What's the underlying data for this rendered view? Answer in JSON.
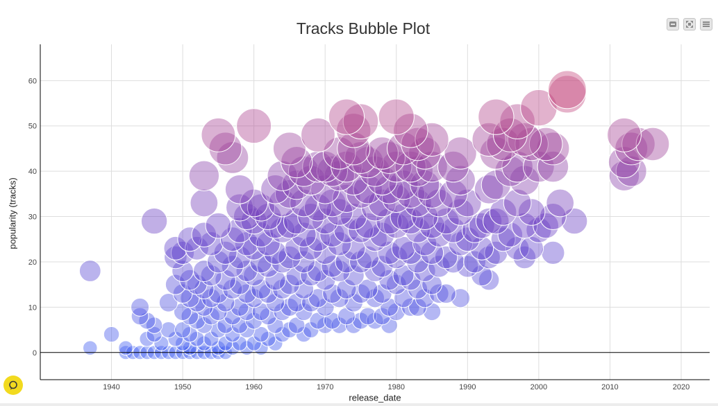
{
  "page": {
    "title": "Tracks Bubble Plot",
    "toolbar": [
      {
        "name": "minimize-button",
        "icon": "minus-icon"
      },
      {
        "name": "expand-button",
        "icon": "expand-icon"
      },
      {
        "name": "menu-button",
        "icon": "hamburger-icon"
      }
    ],
    "help_icon": "help-chat-icon"
  },
  "chart_data": {
    "type": "scatter",
    "title": "Tracks Bubble Plot",
    "xlabel": "release_date",
    "ylabel": "popularity (tracks)",
    "xlim": [
      1930,
      2024
    ],
    "ylim": [
      -6,
      68
    ],
    "xticks": [
      1940,
      1950,
      1960,
      1970,
      1980,
      1990,
      2000,
      2010,
      2020
    ],
    "yticks": [
      0,
      10,
      20,
      30,
      40,
      50,
      60
    ],
    "grid": true,
    "legend": "none",
    "color_scale": {
      "low": "#3d5cf2",
      "mid": "#6e3fc2",
      "high": "#cc4a7a",
      "encodes": "popularity"
    },
    "size_encodes": "popularity",
    "points": [
      [
        1937,
        1
      ],
      [
        1937,
        18
      ],
      [
        1940,
        4
      ],
      [
        1942,
        0
      ],
      [
        1942,
        1
      ],
      [
        1943,
        0
      ],
      [
        1944,
        0
      ],
      [
        1944,
        10
      ],
      [
        1944,
        8
      ],
      [
        1945,
        0
      ],
      [
        1945,
        3
      ],
      [
        1945,
        7
      ],
      [
        1946,
        0
      ],
      [
        1946,
        6
      ],
      [
        1946,
        29
      ],
      [
        1946,
        4
      ],
      [
        1947,
        0
      ],
      [
        1947,
        2
      ],
      [
        1948,
        0
      ],
      [
        1948,
        11
      ],
      [
        1948,
        5
      ],
      [
        1949,
        0
      ],
      [
        1949,
        3
      ],
      [
        1949,
        15
      ],
      [
        1949,
        21
      ],
      [
        1949,
        23
      ],
      [
        1950,
        0
      ],
      [
        1950,
        2
      ],
      [
        1950,
        5
      ],
      [
        1950,
        9
      ],
      [
        1950,
        13
      ],
      [
        1950,
        18
      ],
      [
        1950,
        22
      ],
      [
        1951,
        0
      ],
      [
        1951,
        1
      ],
      [
        1951,
        4
      ],
      [
        1951,
        8
      ],
      [
        1951,
        12
      ],
      [
        1951,
        16
      ],
      [
        1951,
        25
      ],
      [
        1952,
        0
      ],
      [
        1952,
        3
      ],
      [
        1952,
        7
      ],
      [
        1952,
        11
      ],
      [
        1952,
        15
      ],
      [
        1952,
        23
      ],
      [
        1953,
        0
      ],
      [
        1953,
        2
      ],
      [
        1953,
        6
      ],
      [
        1953,
        10
      ],
      [
        1953,
        14
      ],
      [
        1953,
        18
      ],
      [
        1953,
        26
      ],
      [
        1953,
        33
      ],
      [
        1953,
        39
      ],
      [
        1954,
        0
      ],
      [
        1954,
        3
      ],
      [
        1954,
        8
      ],
      [
        1954,
        12
      ],
      [
        1954,
        17
      ],
      [
        1954,
        24
      ],
      [
        1955,
        0
      ],
      [
        1955,
        1
      ],
      [
        1955,
        5
      ],
      [
        1955,
        9
      ],
      [
        1955,
        13
      ],
      [
        1955,
        20
      ],
      [
        1955,
        28
      ],
      [
        1955,
        48
      ],
      [
        1956,
        0
      ],
      [
        1956,
        2
      ],
      [
        1956,
        6
      ],
      [
        1956,
        11
      ],
      [
        1956,
        16
      ],
      [
        1956,
        22
      ],
      [
        1956,
        45
      ],
      [
        1957,
        1
      ],
      [
        1957,
        4
      ],
      [
        1957,
        8
      ],
      [
        1957,
        14
      ],
      [
        1957,
        19
      ],
      [
        1957,
        25
      ],
      [
        1957,
        43
      ],
      [
        1958,
        2
      ],
      [
        1958,
        6
      ],
      [
        1958,
        10
      ],
      [
        1958,
        15
      ],
      [
        1958,
        21
      ],
      [
        1958,
        27
      ],
      [
        1958,
        32
      ],
      [
        1958,
        36
      ],
      [
        1959,
        1
      ],
      [
        1959,
        5
      ],
      [
        1959,
        9
      ],
      [
        1959,
        13
      ],
      [
        1959,
        18
      ],
      [
        1959,
        24
      ],
      [
        1959,
        30
      ],
      [
        1960,
        2
      ],
      [
        1960,
        7
      ],
      [
        1960,
        12
      ],
      [
        1960,
        17
      ],
      [
        1960,
        23
      ],
      [
        1960,
        29
      ],
      [
        1960,
        33
      ],
      [
        1960,
        50
      ],
      [
        1961,
        1
      ],
      [
        1961,
        4
      ],
      [
        1961,
        9
      ],
      [
        1961,
        14
      ],
      [
        1961,
        20
      ],
      [
        1961,
        26
      ],
      [
        1961,
        32
      ],
      [
        1962,
        3
      ],
      [
        1962,
        8
      ],
      [
        1962,
        13
      ],
      [
        1962,
        19
      ],
      [
        1962,
        24
      ],
      [
        1962,
        30
      ],
      [
        1963,
        2
      ],
      [
        1963,
        6
      ],
      [
        1963,
        11
      ],
      [
        1963,
        16
      ],
      [
        1963,
        22
      ],
      [
        1963,
        28
      ],
      [
        1963,
        36
      ],
      [
        1964,
        4
      ],
      [
        1964,
        9
      ],
      [
        1964,
        14
      ],
      [
        1964,
        20
      ],
      [
        1964,
        27
      ],
      [
        1964,
        33
      ],
      [
        1964,
        39
      ],
      [
        1965,
        5
      ],
      [
        1965,
        10
      ],
      [
        1965,
        15
      ],
      [
        1965,
        21
      ],
      [
        1965,
        28
      ],
      [
        1965,
        35
      ],
      [
        1965,
        45
      ],
      [
        1966,
        6
      ],
      [
        1966,
        11
      ],
      [
        1966,
        17
      ],
      [
        1966,
        23
      ],
      [
        1966,
        29
      ],
      [
        1966,
        37
      ],
      [
        1966,
        42
      ],
      [
        1967,
        4
      ],
      [
        1967,
        9
      ],
      [
        1967,
        14
      ],
      [
        1967,
        20
      ],
      [
        1967,
        26
      ],
      [
        1967,
        33
      ],
      [
        1967,
        40
      ],
      [
        1968,
        5
      ],
      [
        1968,
        11
      ],
      [
        1968,
        17
      ],
      [
        1968,
        23
      ],
      [
        1968,
        30
      ],
      [
        1968,
        38
      ],
      [
        1969,
        7
      ],
      [
        1969,
        12
      ],
      [
        1969,
        18
      ],
      [
        1969,
        25
      ],
      [
        1969,
        32
      ],
      [
        1969,
        48
      ],
      [
        1969,
        41
      ],
      [
        1970,
        6
      ],
      [
        1970,
        10
      ],
      [
        1970,
        16
      ],
      [
        1970,
        22
      ],
      [
        1970,
        29
      ],
      [
        1970,
        36
      ],
      [
        1970,
        41
      ],
      [
        1971,
        7
      ],
      [
        1971,
        13
      ],
      [
        1971,
        19
      ],
      [
        1971,
        26
      ],
      [
        1971,
        33
      ],
      [
        1971,
        40
      ],
      [
        1972,
        6
      ],
      [
        1972,
        12
      ],
      [
        1972,
        18
      ],
      [
        1972,
        24
      ],
      [
        1972,
        31
      ],
      [
        1972,
        39
      ],
      [
        1972,
        44
      ],
      [
        1973,
        8
      ],
      [
        1973,
        14
      ],
      [
        1973,
        20
      ],
      [
        1973,
        27
      ],
      [
        1973,
        34
      ],
      [
        1973,
        41
      ],
      [
        1973,
        52
      ],
      [
        1974,
        6
      ],
      [
        1974,
        11
      ],
      [
        1974,
        17
      ],
      [
        1974,
        23
      ],
      [
        1974,
        30
      ],
      [
        1974,
        38
      ],
      [
        1974,
        45
      ],
      [
        1974,
        49
      ],
      [
        1975,
        7
      ],
      [
        1975,
        13
      ],
      [
        1975,
        20
      ],
      [
        1975,
        27
      ],
      [
        1975,
        35
      ],
      [
        1975,
        43
      ],
      [
        1975,
        51
      ],
      [
        1976,
        8
      ],
      [
        1976,
        14
      ],
      [
        1976,
        21
      ],
      [
        1976,
        28
      ],
      [
        1976,
        36
      ],
      [
        1976,
        42
      ],
      [
        1977,
        7
      ],
      [
        1977,
        12
      ],
      [
        1977,
        18
      ],
      [
        1977,
        25
      ],
      [
        1977,
        32
      ],
      [
        1977,
        40
      ],
      [
        1978,
        8
      ],
      [
        1978,
        13
      ],
      [
        1978,
        19
      ],
      [
        1978,
        26
      ],
      [
        1978,
        33
      ],
      [
        1978,
        38
      ],
      [
        1978,
        44
      ],
      [
        1979,
        6
      ],
      [
        1979,
        10
      ],
      [
        1979,
        16
      ],
      [
        1979,
        22
      ],
      [
        1979,
        29
      ],
      [
        1979,
        36
      ],
      [
        1979,
        43
      ],
      [
        1980,
        9
      ],
      [
        1980,
        15
      ],
      [
        1980,
        21
      ],
      [
        1980,
        28
      ],
      [
        1980,
        34
      ],
      [
        1980,
        41
      ],
      [
        1980,
        52
      ],
      [
        1981,
        12
      ],
      [
        1981,
        17
      ],
      [
        1981,
        23
      ],
      [
        1981,
        30
      ],
      [
        1981,
        37
      ],
      [
        1981,
        45
      ],
      [
        1982,
        10
      ],
      [
        1982,
        16
      ],
      [
        1982,
        22
      ],
      [
        1982,
        29
      ],
      [
        1982,
        35
      ],
      [
        1982,
        41
      ],
      [
        1982,
        49
      ],
      [
        1983,
        10
      ],
      [
        1983,
        14
      ],
      [
        1983,
        20
      ],
      [
        1983,
        27
      ],
      [
        1983,
        33
      ],
      [
        1983,
        40
      ],
      [
        1983,
        46
      ],
      [
        1984,
        12
      ],
      [
        1984,
        18
      ],
      [
        1984,
        24
      ],
      [
        1984,
        30
      ],
      [
        1984,
        37
      ],
      [
        1984,
        44
      ],
      [
        1985,
        9
      ],
      [
        1985,
        15
      ],
      [
        1985,
        22
      ],
      [
        1985,
        28
      ],
      [
        1985,
        35
      ],
      [
        1985,
        41
      ],
      [
        1985,
        47
      ],
      [
        1986,
        13
      ],
      [
        1986,
        19
      ],
      [
        1986,
        26
      ],
      [
        1986,
        33
      ],
      [
        1987,
        13
      ],
      [
        1987,
        21
      ],
      [
        1987,
        29
      ],
      [
        1988,
        20
      ],
      [
        1988,
        27
      ],
      [
        1988,
        35
      ],
      [
        1988,
        41
      ],
      [
        1989,
        12
      ],
      [
        1989,
        24
      ],
      [
        1989,
        31
      ],
      [
        1989,
        38
      ],
      [
        1989,
        44
      ],
      [
        1990,
        19
      ],
      [
        1990,
        25
      ],
      [
        1990,
        33
      ],
      [
        1991,
        20
      ],
      [
        1991,
        27
      ],
      [
        1992,
        17
      ],
      [
        1992,
        23
      ],
      [
        1992,
        28
      ],
      [
        1993,
        16
      ],
      [
        1993,
        21
      ],
      [
        1993,
        29
      ],
      [
        1993,
        36
      ],
      [
        1993,
        47
      ],
      [
        1994,
        22
      ],
      [
        1994,
        29
      ],
      [
        1994,
        37
      ],
      [
        1994,
        44
      ],
      [
        1994,
        52
      ],
      [
        1995,
        25
      ],
      [
        1995,
        31
      ],
      [
        1995,
        46
      ],
      [
        1996,
        26
      ],
      [
        1996,
        40
      ],
      [
        1996,
        48
      ],
      [
        1997,
        23
      ],
      [
        1997,
        33
      ],
      [
        1997,
        41
      ],
      [
        1997,
        51
      ],
      [
        1998,
        21
      ],
      [
        1998,
        28
      ],
      [
        1998,
        38
      ],
      [
        1998,
        47
      ],
      [
        1999,
        23
      ],
      [
        1999,
        31
      ],
      [
        1999,
        46
      ],
      [
        2000,
        27
      ],
      [
        2000,
        41
      ],
      [
        2000,
        54
      ],
      [
        2001,
        28
      ],
      [
        2001,
        46
      ],
      [
        2002,
        22
      ],
      [
        2002,
        30
      ],
      [
        2002,
        41
      ],
      [
        2002,
        45
      ],
      [
        2003,
        33
      ],
      [
        2004,
        58
      ],
      [
        2004,
        57
      ],
      [
        2005,
        29
      ],
      [
        2012,
        48
      ],
      [
        2012,
        42
      ],
      [
        2012,
        39
      ],
      [
        2013,
        40
      ],
      [
        2013,
        45
      ],
      [
        2014,
        46
      ],
      [
        2016,
        46
      ]
    ]
  }
}
